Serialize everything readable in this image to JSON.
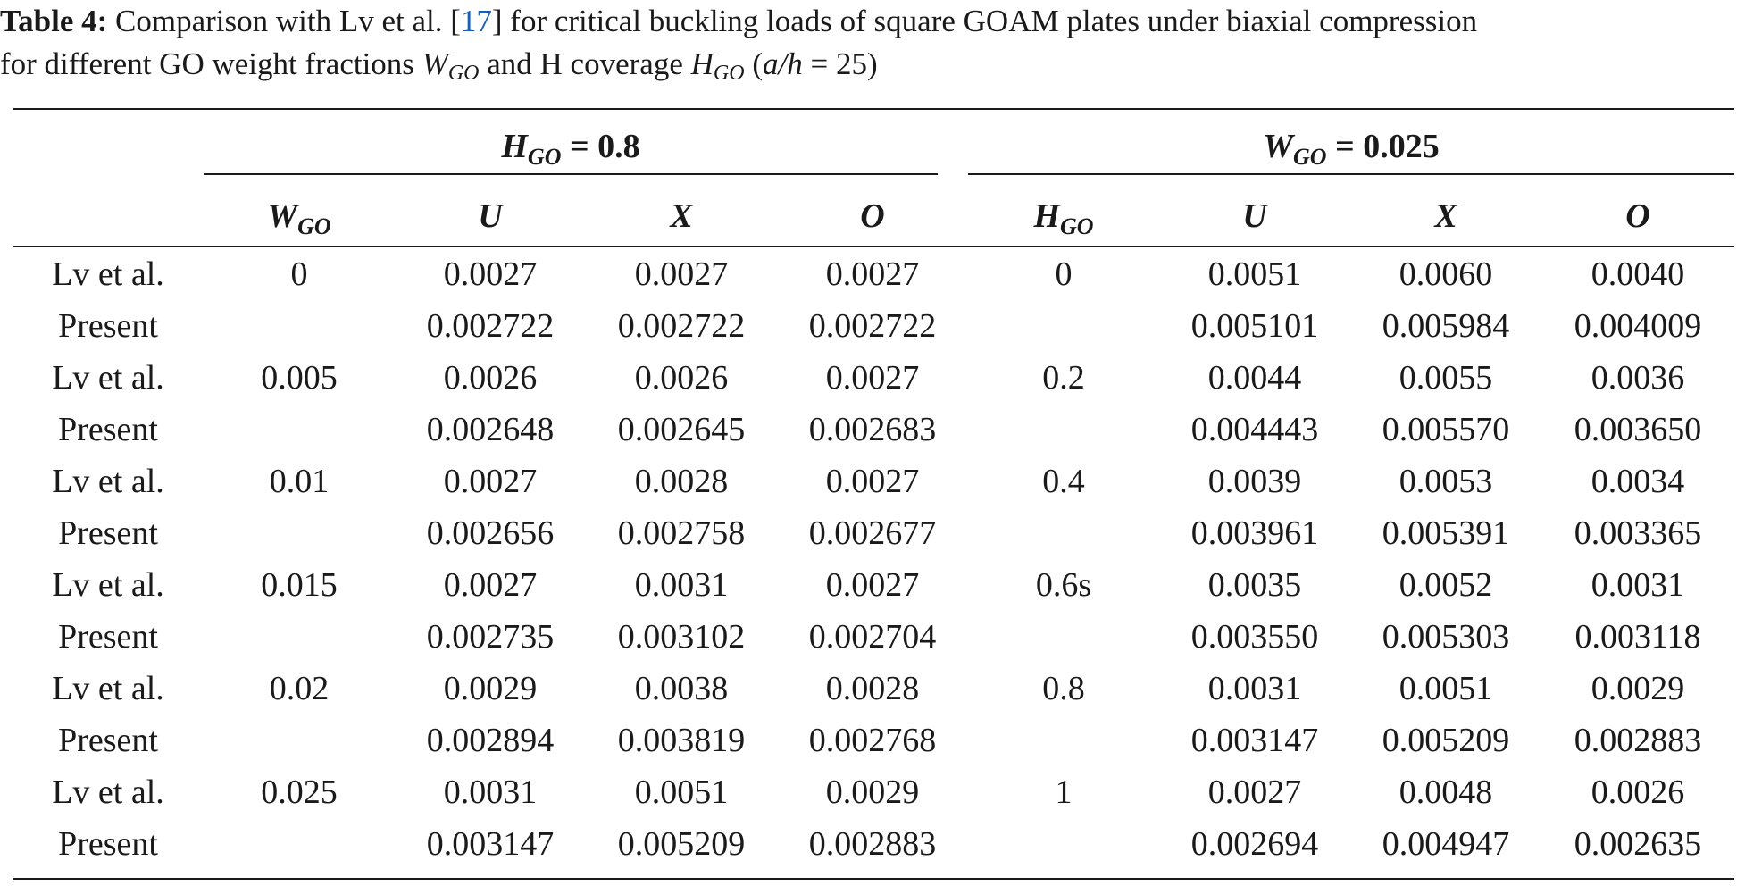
{
  "caption": {
    "label": "Table 4:",
    "text_before_ref": " Comparison with Lv et al. [",
    "ref": "17",
    "text_after_ref": "] for critical buckling loads of square GOAM plates under biaxial compression",
    "line2_a": "for different GO weight fractions ",
    "w_sym": "W",
    "w_sub": "GO",
    "line2_b": " and H coverage ",
    "h_sym": "H",
    "h_sub": "GO",
    "line2_c": " (",
    "ratio": "a/h",
    "line2_d": " = 25)"
  },
  "groups": {
    "left": {
      "sym": "H",
      "sub": "GO",
      "value": " = 0.8"
    },
    "right": {
      "sym": "W",
      "sub": "GO",
      "value": " = 0.025"
    }
  },
  "headers": {
    "left_param": {
      "sym": "W",
      "sub": "GO"
    },
    "u1": "U",
    "x1": "X",
    "o1": "O",
    "right_param": {
      "sym": "H",
      "sub": "GO"
    },
    "u2": "U",
    "x2": "X",
    "o2": "O"
  },
  "rows": [
    [
      "Lv et al.",
      "0",
      "0.0027",
      "0.0027",
      "0.0027",
      "0",
      "0.0051",
      "0.0060",
      "0.0040"
    ],
    [
      "Present",
      "",
      "0.002722",
      "0.002722",
      "0.002722",
      "",
      "0.005101",
      "0.005984",
      "0.004009"
    ],
    [
      "Lv et al.",
      "0.005",
      "0.0026",
      "0.0026",
      "0.0027",
      "0.2",
      "0.0044",
      "0.0055",
      "0.0036"
    ],
    [
      "Present",
      "",
      "0.002648",
      "0.002645",
      "0.002683",
      "",
      "0.004443",
      "0.005570",
      "0.003650"
    ],
    [
      "Lv et al.",
      "0.01",
      "0.0027",
      "0.0028",
      "0.0027",
      "0.4",
      "0.0039",
      "0.0053",
      "0.0034"
    ],
    [
      "Present",
      "",
      "0.002656",
      "0.002758",
      "0.002677",
      "",
      "0.003961",
      "0.005391",
      "0.003365"
    ],
    [
      "Lv et al.",
      "0.015",
      "0.0027",
      "0.0031",
      "0.0027",
      "0.6s",
      "0.0035",
      "0.0052",
      "0.0031"
    ],
    [
      "Present",
      "",
      "0.002735",
      "0.003102",
      "0.002704",
      "",
      "0.003550",
      "0.005303",
      "0.003118"
    ],
    [
      "Lv et al.",
      "0.02",
      "0.0029",
      "0.0038",
      "0.0028",
      "0.8",
      "0.0031",
      "0.0051",
      "0.0029"
    ],
    [
      "Present",
      "",
      "0.002894",
      "0.003819",
      "0.002768",
      "",
      "0.003147",
      "0.005209",
      "0.002883"
    ],
    [
      "Lv et al.",
      "0.025",
      "0.0031",
      "0.0051",
      "0.0029",
      "1",
      "0.0027",
      "0.0048",
      "0.0026"
    ],
    [
      "Present",
      "",
      "0.003147",
      "0.005209",
      "0.002883",
      "",
      "0.002694",
      "0.004947",
      "0.002635"
    ]
  ]
}
